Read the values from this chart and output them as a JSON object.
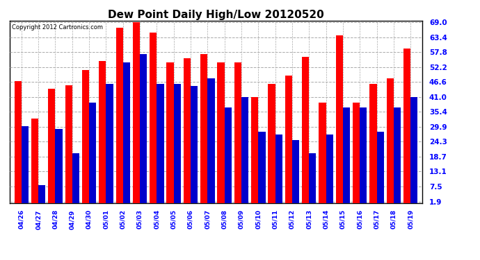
{
  "title": "Dew Point Daily High/Low 20120520",
  "copyright": "Copyright 2012 Cartronics.com",
  "dates": [
    "04/26",
    "04/27",
    "04/28",
    "04/29",
    "04/30",
    "05/01",
    "05/02",
    "05/03",
    "05/04",
    "05/05",
    "05/06",
    "05/07",
    "05/08",
    "05/09",
    "05/10",
    "05/11",
    "05/12",
    "05/13",
    "05/14",
    "05/15",
    "05/16",
    "05/17",
    "05/18",
    "05/19"
  ],
  "highs": [
    47.0,
    33.0,
    44.0,
    45.5,
    51.0,
    54.5,
    67.0,
    69.0,
    65.0,
    54.0,
    55.5,
    57.0,
    54.0,
    54.0,
    41.0,
    46.0,
    49.0,
    56.0,
    39.0,
    64.0,
    39.0,
    46.0,
    48.0,
    59.0
  ],
  "lows": [
    30.0,
    8.0,
    29.0,
    20.0,
    39.0,
    46.0,
    54.0,
    57.0,
    46.0,
    46.0,
    45.0,
    48.0,
    37.0,
    41.0,
    28.0,
    27.0,
    25.0,
    20.0,
    27.0,
    37.0,
    37.0,
    28.0,
    37.0,
    41.0
  ],
  "high_color": "#ff0000",
  "low_color": "#0000cc",
  "bg_color": "#ffffff",
  "grid_color": "#aaaaaa",
  "yticks": [
    1.9,
    7.5,
    13.1,
    18.7,
    24.3,
    29.9,
    35.4,
    41.0,
    46.6,
    52.2,
    57.8,
    63.4,
    69.0
  ],
  "ymin": 1.9,
  "ymax": 69.0,
  "bar_width": 0.42,
  "figwidth": 6.9,
  "figheight": 3.75,
  "dpi": 100
}
